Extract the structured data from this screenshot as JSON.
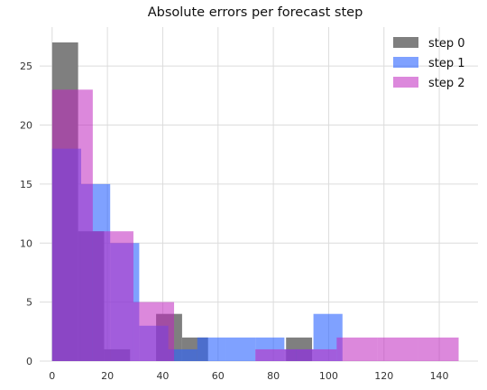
{
  "chart_data": {
    "type": "bar",
    "title": "Absolute errors per forecast step",
    "xlabel": "",
    "ylabel": "",
    "xlim": [
      -4.5,
      154
    ],
    "ylim": [
      0,
      28.3
    ],
    "xticks": [
      0,
      20,
      40,
      60,
      80,
      100,
      120,
      140
    ],
    "yticks": [
      0,
      5,
      10,
      15,
      20,
      25
    ],
    "grid": true,
    "legend_position": "top-right",
    "series": [
      {
        "name": "step 0",
        "color": "#7f7f7f",
        "opacity": 1.0,
        "bin_edges": [
          0,
          9.4,
          18.8,
          28.2,
          37.6,
          47,
          56.4,
          65.8,
          75.2,
          84.6,
          94
        ],
        "counts": [
          27,
          11,
          1,
          0,
          4,
          2,
          0,
          0,
          0,
          2
        ]
      },
      {
        "name": "step 1",
        "color": "#2962ff",
        "opacity": 0.6,
        "bin_edges": [
          0,
          10.5,
          21,
          31.5,
          42,
          52.5,
          63,
          73.5,
          84,
          94.5,
          105
        ],
        "counts": [
          18,
          15,
          10,
          3,
          1,
          2,
          2,
          2,
          1,
          4
        ]
      },
      {
        "name": "step 2",
        "color": "#c026c0",
        "opacity": 0.55,
        "bin_edges": [
          0,
          14.7,
          29.4,
          44.1,
          58.8,
          73.5,
          88.2,
          102.9,
          117.6,
          132.3,
          147
        ],
        "counts": [
          23,
          11,
          5,
          0,
          0,
          1,
          1,
          2,
          2,
          2
        ]
      }
    ]
  }
}
